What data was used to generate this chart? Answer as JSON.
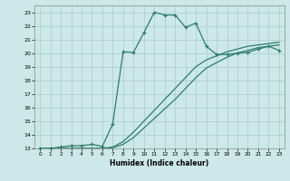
{
  "xlabel": "Humidex (Indice chaleur)",
  "xlim": [
    -0.5,
    23.5
  ],
  "ylim": [
    13,
    23.5
  ],
  "xticks": [
    0,
    1,
    2,
    3,
    4,
    5,
    6,
    7,
    8,
    9,
    10,
    11,
    12,
    13,
    14,
    15,
    16,
    17,
    18,
    19,
    20,
    21,
    22,
    23
  ],
  "yticks": [
    13,
    14,
    15,
    16,
    17,
    18,
    19,
    20,
    21,
    22,
    23
  ],
  "line_color": "#2e7d6e",
  "bg_color": "#cce8e8",
  "grid_color": "#b0d0d0",
  "line1_x": [
    0,
    1,
    2,
    3,
    4,
    5,
    6,
    7,
    8,
    9,
    10,
    11,
    12,
    13,
    14,
    15,
    16,
    17,
    18,
    19,
    20,
    21,
    22,
    23
  ],
  "line1_y": [
    13,
    13,
    13.1,
    13.2,
    13.2,
    13.3,
    13.15,
    14.8,
    20.1,
    20.05,
    21.5,
    23.0,
    22.8,
    22.8,
    21.9,
    22.2,
    20.5,
    19.9,
    19.9,
    20.0,
    20.05,
    20.3,
    20.5,
    20.2
  ],
  "line2_x": [
    0,
    1,
    2,
    3,
    4,
    5,
    6,
    7,
    8,
    9,
    10,
    11,
    12,
    13,
    14,
    15,
    16,
    17,
    18,
    19,
    20,
    21,
    22,
    23
  ],
  "line2_y": [
    13,
    13,
    13,
    13,
    13,
    13,
    13,
    13.1,
    13.5,
    14.2,
    15.0,
    15.8,
    16.6,
    17.4,
    18.2,
    19.0,
    19.5,
    19.8,
    20.1,
    20.3,
    20.5,
    20.6,
    20.7,
    20.8
  ],
  "line3_x": [
    0,
    1,
    2,
    3,
    4,
    5,
    6,
    7,
    8,
    9,
    10,
    11,
    12,
    13,
    14,
    15,
    16,
    17,
    18,
    19,
    20,
    21,
    22,
    23
  ],
  "line3_y": [
    13,
    13,
    13,
    13,
    13,
    13,
    13,
    13.05,
    13.3,
    13.8,
    14.5,
    15.2,
    15.9,
    16.6,
    17.4,
    18.2,
    18.9,
    19.3,
    19.7,
    20.0,
    20.2,
    20.4,
    20.5,
    20.6
  ]
}
